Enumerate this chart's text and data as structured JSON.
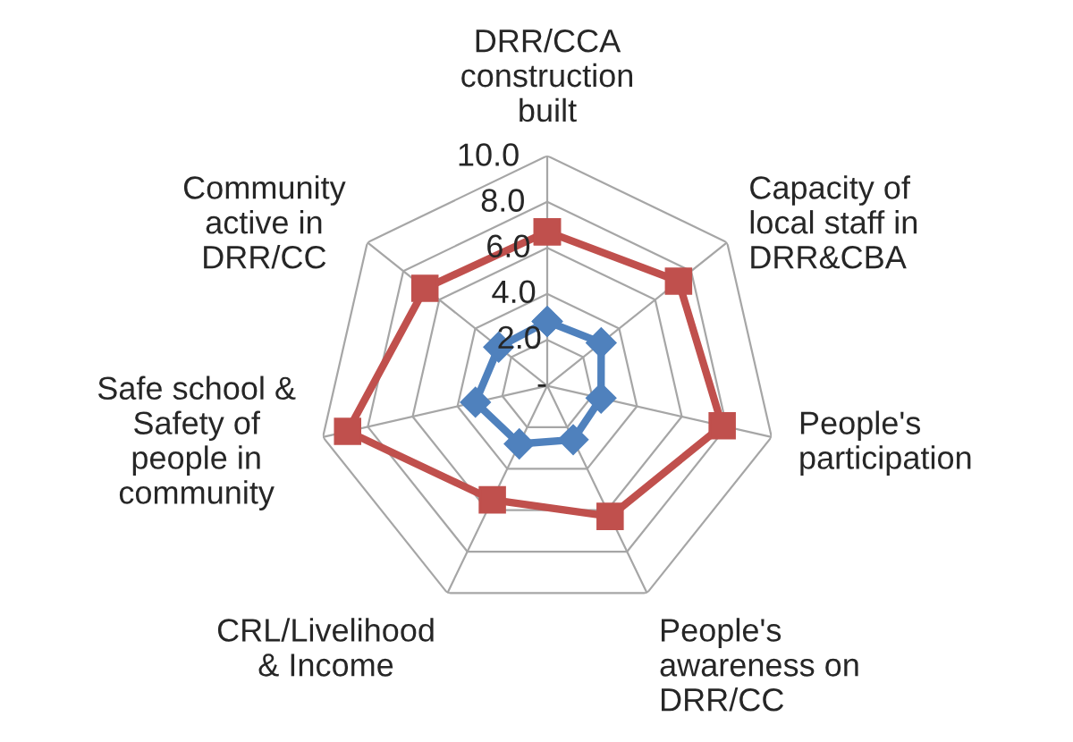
{
  "chart_data": {
    "type": "radar",
    "categories": [
      "DRR/CCA\nconstruction\nbuilt",
      "Capacity of\nlocal staff in\nDRR&CBA",
      "People's\nparticipation",
      "People's\nawareness on\nDRR/CC",
      "CRL/Livelihood\n& Income",
      "Safe school &\nSafety of\npeople in\ncommunity",
      "Community\nactive in\nDRR/CC"
    ],
    "series": [
      {
        "color": "#4f81bd",
        "marker": "diamond",
        "values": [
          2.8,
          3.0,
          2.4,
          2.6,
          2.8,
          3.2,
          2.7
        ]
      },
      {
        "color": "#c0504d",
        "marker": "square",
        "values": [
          6.7,
          7.3,
          7.8,
          6.3,
          5.5,
          8.9,
          6.8
        ]
      }
    ],
    "ylim": [
      0,
      10
    ],
    "yticks": [
      {
        "value": 0,
        "label": "-"
      },
      {
        "value": 2,
        "label": "2.0"
      },
      {
        "value": 4,
        "label": "4.0"
      },
      {
        "value": 6,
        "label": "6.0"
      },
      {
        "value": 8,
        "label": "8.0"
      },
      {
        "value": 10,
        "label": "10.0"
      }
    ],
    "grid": true
  }
}
